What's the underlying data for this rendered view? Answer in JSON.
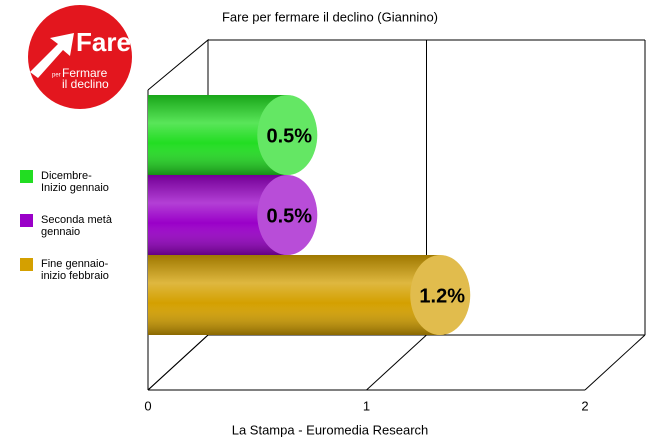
{
  "logo": {
    "name": "Fare",
    "small": "per",
    "line1": "Fermare",
    "line2": "il declino"
  },
  "chart_data": {
    "type": "bar",
    "orientation": "horizontal",
    "title": "Fare per fermare il declino (Giannino)",
    "x_label": "La Stampa - Euromedia Research",
    "xlim": [
      0,
      2
    ],
    "xticks": [
      0,
      1,
      2
    ],
    "grid": true,
    "legend": "left",
    "series": [
      {
        "name": "Dicembre-\nInizio gennaio",
        "color": "#22dd22",
        "values": [
          0.5
        ],
        "value_labels": [
          "0.5%"
        ]
      },
      {
        "name": "Seconda metà\ngennaio",
        "color": "#9a00c8",
        "values": [
          0.5
        ],
        "value_labels": [
          "0.5%"
        ]
      },
      {
        "name": "Fine gennaio-\ninizio febbraio",
        "color": "#d4a000",
        "values": [
          1.2
        ],
        "value_labels": [
          "1.2%"
        ]
      }
    ]
  }
}
